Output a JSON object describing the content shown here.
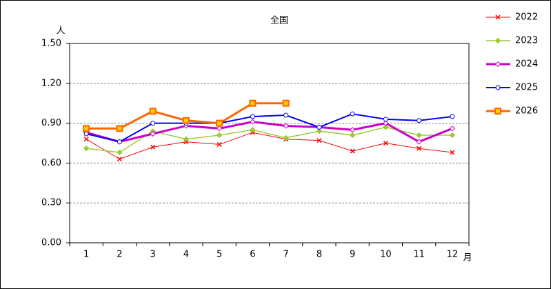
{
  "chart_data": {
    "type": "line",
    "title": "全国",
    "y_unit": "人",
    "x_unit": "月",
    "categories": [
      "1",
      "2",
      "3",
      "4",
      "5",
      "6",
      "7",
      "8",
      "9",
      "10",
      "11",
      "12"
    ],
    "ylim": [
      0,
      1.5
    ],
    "yticks": [
      {
        "value": 0,
        "label": "0.00"
      },
      {
        "value": 0.3,
        "label": "0.30"
      },
      {
        "value": 0.6,
        "label": "0.60"
      },
      {
        "value": 0.9,
        "label": "0.90"
      },
      {
        "value": 1.2,
        "label": "1.20"
      },
      {
        "value": 1.5,
        "label": "1.50"
      }
    ],
    "grid": true,
    "legend": "right",
    "series": [
      {
        "name": "2022",
        "color": "#ff0000",
        "marker": "x",
        "values": [
          0.78,
          0.63,
          0.72,
          0.76,
          0.74,
          0.83,
          0.78,
          0.77,
          0.69,
          0.75,
          0.71,
          0.68
        ]
      },
      {
        "name": "2023",
        "color": "#99cc33",
        "marker": "diamond",
        "values": [
          0.71,
          0.68,
          0.84,
          0.78,
          0.81,
          0.85,
          0.79,
          0.84,
          0.81,
          0.87,
          0.81,
          0.81
        ]
      },
      {
        "name": "2024",
        "color": "#cc00cc",
        "marker": "open-diamond",
        "values": [
          0.83,
          0.76,
          0.82,
          0.88,
          0.86,
          0.91,
          0.88,
          0.87,
          0.85,
          0.9,
          0.76,
          0.86
        ]
      },
      {
        "name": "2025",
        "color": "#0000ff",
        "marker": "open-circle",
        "values": [
          0.82,
          0.76,
          0.9,
          0.9,
          0.9,
          0.95,
          0.96,
          0.87,
          0.97,
          0.93,
          0.92,
          0.95
        ]
      },
      {
        "name": "2026",
        "color": "#ff6600",
        "marker": "square",
        "values": [
          0.86,
          0.86,
          0.99,
          0.92,
          0.9,
          1.05,
          1.05,
          null,
          null,
          null,
          null,
          null
        ]
      }
    ]
  }
}
